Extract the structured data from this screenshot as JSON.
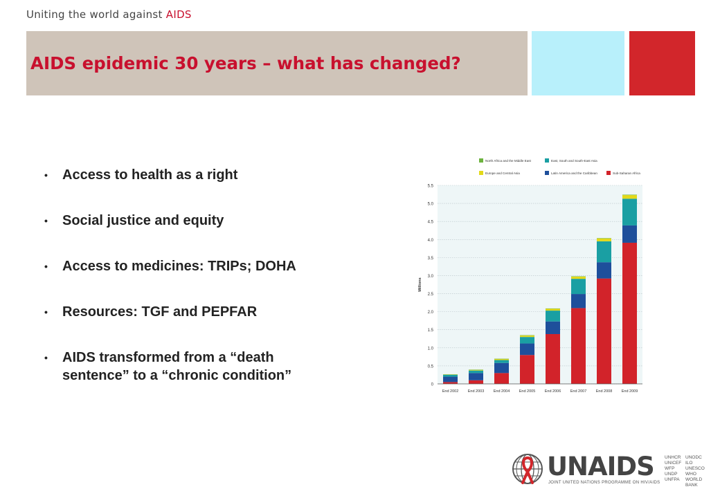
{
  "header": {
    "tagline_prefix": "Uniting the world against ",
    "tagline_accent": "AIDS",
    "title": "AIDS epidemic 30 years – what has changed?"
  },
  "bullets": [
    {
      "line1": "Access to health as a right",
      "line2": ""
    },
    {
      "line1": "Social justice and equity",
      "line2": ""
    },
    {
      "line1": "Access to medicines: TRIPs; DOHA",
      "line2": ""
    },
    {
      "line1": "Resources: TGF and PEPFAR",
      "line2": ""
    },
    {
      "line1": "AIDS transformed from a “death",
      "line2": "sentence” to a “chronic condition”"
    }
  ],
  "colors": {
    "title_red": "#c8102e",
    "title_bar": "#cfc4b9",
    "accent_cyan": "#b8f0fb",
    "accent_red": "#d2262b"
  },
  "chart_data": {
    "type": "bar",
    "stacked": true,
    "ylabel": "Millions",
    "ylim": [
      0,
      5.5
    ],
    "yticks": [
      "0",
      "0.5",
      "1.0",
      "1.5",
      "2.0",
      "2.5",
      "3.0",
      "3.5",
      "4.0",
      "4.5",
      "5.0",
      "5.5"
    ],
    "categories": [
      "End 2002",
      "End 2003",
      "End 2004",
      "End 2005",
      "End 2006",
      "End 2007",
      "End 2008",
      "End 2009"
    ],
    "legend": [
      "North Africa and the Middle East",
      "East, South and South-East Asia",
      "Europe and Central Asia",
      "Latin America and the Caribbean",
      "Sub-Saharan Africa"
    ],
    "series": [
      {
        "name": "Sub-Saharan Africa",
        "color": "#d2232a",
        "values": [
          0.05,
          0.1,
          0.3,
          0.8,
          1.38,
          2.1,
          2.92,
          3.91
        ]
      },
      {
        "name": "Latin America and the Caribbean",
        "color": "#1e4f9b",
        "values": [
          0.15,
          0.2,
          0.28,
          0.32,
          0.35,
          0.39,
          0.45,
          0.48
        ]
      },
      {
        "name": "East, South and South-East Asia",
        "color": "#1a9fa3",
        "values": [
          0.05,
          0.07,
          0.08,
          0.18,
          0.3,
          0.42,
          0.58,
          0.74
        ]
      },
      {
        "name": "Europe and Central Asia",
        "color": "#e3d919",
        "values": [
          0.01,
          0.02,
          0.03,
          0.04,
          0.05,
          0.06,
          0.08,
          0.1
        ]
      },
      {
        "name": "North Africa and the Middle East",
        "color": "#6db33f",
        "values": [
          0.003,
          0.005,
          0.007,
          0.01,
          0.01,
          0.01,
          0.01,
          0.012
        ]
      }
    ],
    "grid": true,
    "legend_position": "top"
  },
  "logo": {
    "wordmark": "UNAIDS",
    "subtitle": "JOINT UNITED NATIONS PROGRAMME ON HIV/AIDS",
    "cosponsors_col1": [
      "UNHCR",
      "UNICEF",
      "WFP",
      "UNDP",
      "UNFPA"
    ],
    "cosponsors_col2": [
      "UNODC",
      "ILO",
      "UNESCO",
      "WHO",
      "WORLD BANK"
    ]
  }
}
